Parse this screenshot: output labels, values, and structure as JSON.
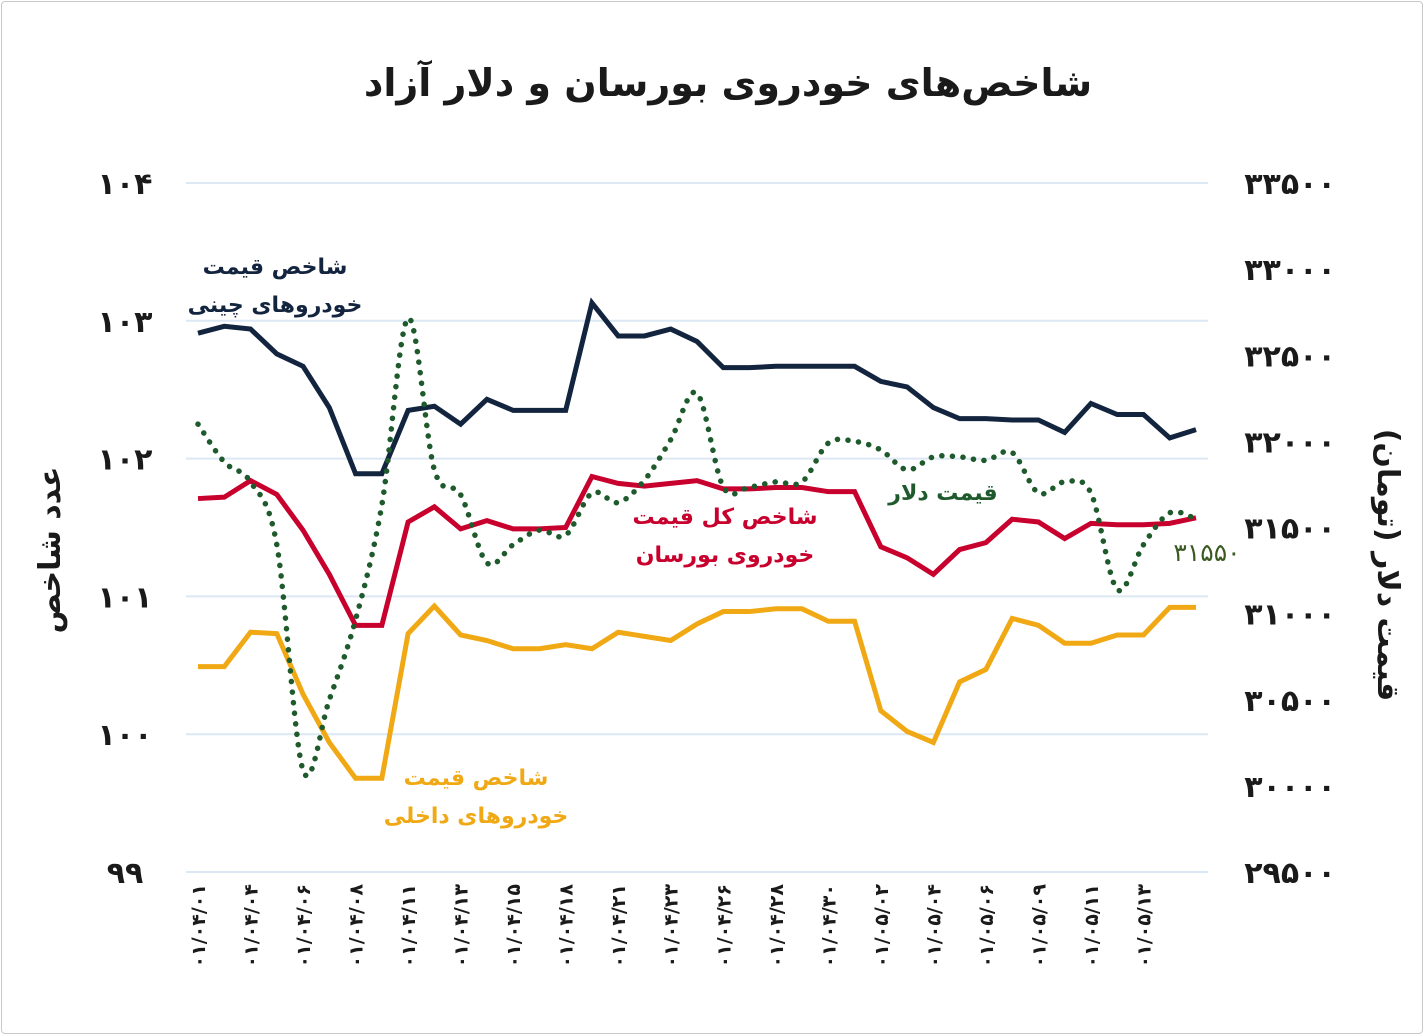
{
  "chart_data": {
    "type": "line",
    "title": "شاخص‌های خودروی بورسان و دلار آزاد",
    "ylabel_left": "عدد شاخص",
    "ylabel_right": "قیمت دلار (تومان)",
    "ylim_left": [
      99,
      104
    ],
    "ylim_right": [
      29500,
      33500
    ],
    "yticks_left": [
      "۱۰۴",
      "۱۰۳",
      "۱۰۲",
      "۱۰۱",
      "۱۰۰",
      "۹۹"
    ],
    "yticks_right": [
      "۳۳۵۰۰",
      "۳۳۰۰۰",
      "۳۲۵۰۰",
      "۳۲۰۰۰",
      "۳۱۵۰۰",
      "۳۱۰۰۰",
      "۳۰۵۰۰",
      "۳۰۰۰۰",
      "۲۹۵۰۰"
    ],
    "grid": true,
    "x_tick_labels": [
      "۰۱/۰۴/۰۱",
      "۰۱/۰۴/۰۴",
      "۰۱/۰۴/۰۶",
      "۰۱/۰۴/۰۸",
      "۰۱/۰۴/۱۱",
      "۰۱/۰۴/۱۳",
      "۰۱/۰۴/۱۵",
      "۰۱/۰۴/۱۸",
      "۰۱/۰۴/۲۱",
      "۰۱/۰۴/۲۳",
      "۰۱/۰۴/۲۶",
      "۰۱/۰۴/۲۸",
      "۰۱/۰۴/۳۰",
      "۰۱/۰۵/۰۲",
      "۰۱/۰۵/۰۴",
      "۰۱/۰۵/۰۶",
      "۰۱/۰۵/۰۹",
      "۰۱/۰۵/۱۱",
      "۰۱/۰۵/۱۳"
    ],
    "series": [
      {
        "name": "شاخص قیمت خودروهای چینی",
        "name_lines": [
          "شاخص قیمت",
          "خودروهای چینی"
        ],
        "axis": "left",
        "color": "#13243f",
        "style": "solid",
        "values": [
          102.91,
          102.96,
          102.94,
          102.76,
          102.67,
          102.37,
          101.89,
          101.89,
          102.35,
          102.38,
          102.25,
          102.43,
          102.35,
          102.35,
          102.35,
          103.13,
          102.89,
          102.89,
          102.94,
          102.85,
          102.66,
          102.66,
          102.67,
          102.67,
          102.67,
          102.67,
          102.56,
          102.52,
          102.37,
          102.29,
          102.29,
          102.28,
          102.28,
          102.19,
          102.4,
          102.32,
          102.32,
          102.15,
          102.21
        ]
      },
      {
        "name": "شاخص کل قیمت خودروی بورسان",
        "name_lines": [
          "شاخص کل قیمت",
          "خودروی بورسان"
        ],
        "axis": "left",
        "color": "#c8002d",
        "style": "solid",
        "values": [
          101.71,
          101.72,
          101.84,
          101.74,
          101.48,
          101.16,
          100.79,
          100.79,
          101.54,
          101.65,
          101.49,
          101.55,
          101.49,
          101.49,
          101.5,
          101.87,
          101.82,
          101.8,
          101.82,
          101.84,
          101.78,
          101.78,
          101.79,
          101.79,
          101.76,
          101.76,
          101.36,
          101.28,
          101.16,
          101.34,
          101.39,
          101.56,
          101.54,
          101.42,
          101.53,
          101.52,
          101.52,
          101.53,
          101.57
        ]
      },
      {
        "name": "شاخص قیمت خودروهای داخلی",
        "name_lines": [
          "شاخص قیمت",
          "خودروهای داخلی"
        ],
        "axis": "left",
        "color": "#f0a914",
        "style": "solid",
        "values": [
          100.49,
          100.49,
          100.74,
          100.73,
          100.29,
          99.94,
          99.68,
          99.68,
          100.73,
          100.93,
          100.72,
          100.68,
          100.62,
          100.62,
          100.65,
          100.62,
          100.74,
          100.71,
          100.68,
          100.8,
          100.89,
          100.89,
          100.91,
          100.91,
          100.82,
          100.82,
          100.17,
          100.02,
          99.94,
          100.38,
          100.47,
          100.84,
          100.79,
          100.66,
          100.66,
          100.72,
          100.72,
          100.92,
          100.92
        ]
      },
      {
        "name": "قیمت دلار",
        "name_lines": [
          "قیمت دلار"
        ],
        "axis": "right",
        "color": "#1e5a2c",
        "style": "dotted",
        "values": [
          32100,
          31880,
          31765,
          31400,
          30090,
          30500,
          30965,
          31630,
          32715,
          31835,
          31690,
          31295,
          31400,
          31485,
          31455,
          31700,
          31645,
          31775,
          32010,
          32280,
          31735,
          31735,
          31765,
          31765,
          31990,
          32000,
          31950,
          31835,
          31910,
          31910,
          31890,
          31935,
          31700,
          31765,
          31700,
          31140,
          31400,
          31585,
          31550
        ],
        "last_value_label": "۳۱۵۵۰"
      }
    ]
  }
}
